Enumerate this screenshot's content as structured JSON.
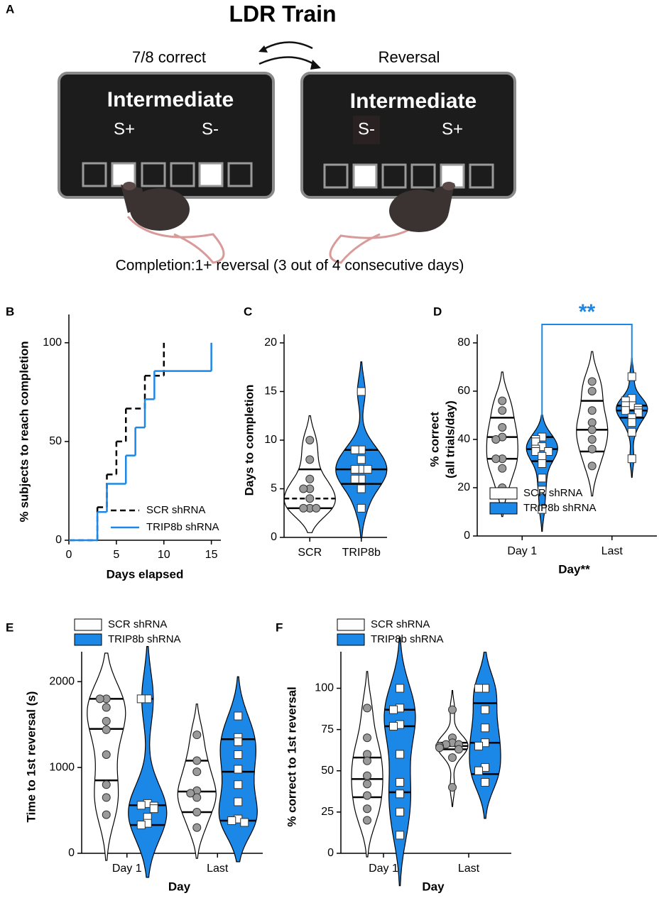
{
  "panel_a": {
    "label": "A",
    "title": "LDR Train",
    "left": {
      "caption": "7/8 correct",
      "screen": "Intermediate",
      "stimuli": [
        "S+",
        "S-"
      ]
    },
    "right": {
      "caption": "Reversal",
      "screen": "Intermediate",
      "stimuli": [
        "S-",
        "S+"
      ]
    },
    "footer": "Completion:1+ reversal (3 out of 4 consecutive days)"
  },
  "chart_data": [
    {
      "panel": "B",
      "type": "step",
      "xlabel": "Days elapsed",
      "ylabel": "% subjects to reach completion",
      "xlim": [
        0,
        16
      ],
      "xticks": [
        0,
        5,
        10,
        15
      ],
      "ylim": [
        0,
        110
      ],
      "yticks": [
        0,
        50,
        100
      ],
      "legend": "lower right",
      "series": [
        {
          "name": "SCR shRNA",
          "color": "#000000",
          "dashed": true,
          "x": [
            0,
            3,
            4,
            5,
            6,
            8,
            10
          ],
          "values": [
            0,
            16.7,
            33.3,
            50,
            66.7,
            83.3,
            100
          ]
        },
        {
          "name": "TRIP8b shRNA",
          "color": "#1b87e6",
          "dashed": false,
          "x": [
            0,
            3,
            4,
            6,
            7,
            8,
            9,
            15
          ],
          "values": [
            0,
            14.3,
            28.6,
            42.9,
            57.1,
            71.4,
            85.7,
            100
          ]
        }
      ]
    },
    {
      "panel": "C",
      "type": "violin",
      "ylabel": "Days to completion",
      "ylim": [
        0,
        20
      ],
      "yticks": [
        0,
        5,
        10,
        15,
        20
      ],
      "categories": [
        "SCR",
        "TRIP8b"
      ],
      "colors": [
        "#ffffff",
        "#1b87e6"
      ],
      "markers": [
        "circle",
        "square"
      ],
      "values": [
        [
          10,
          8,
          6,
          5,
          5,
          4,
          3,
          3,
          3
        ],
        [
          15,
          9,
          9,
          8,
          7,
          7,
          7,
          6,
          6,
          5,
          3
        ]
      ],
      "quartiles": [
        [
          3,
          4,
          7
        ],
        [
          5.5,
          7,
          9
        ]
      ]
    },
    {
      "panel": "D",
      "type": "grouped_violin",
      "xlabel": "Day**",
      "ylabel": [
        "% correct",
        "(all trials/day)"
      ],
      "ylim": [
        0,
        80
      ],
      "yticks": [
        0,
        20,
        40,
        60,
        80
      ],
      "categories": [
        "Day 1",
        "Last"
      ],
      "legend": "top",
      "annotation": "**",
      "series": [
        {
          "name": "SCR shRNA",
          "color": "#ffffff",
          "marker": "circle",
          "values": [
            [
              56,
              52,
              45,
              41,
              40,
              32,
              32,
              28,
              20
            ],
            [
              64,
              60,
              52,
              47,
              44,
              40,
              36,
              29
            ]
          ],
          "quartiles": [
            [
              32,
              41,
              49
            ],
            [
              35,
              44,
              56
            ]
          ]
        },
        {
          "name": "TRIP8b shRNA",
          "color": "#1b87e6",
          "marker": "square",
          "values": [
            [
              41,
              40,
              39,
              37,
              36,
              35,
              35,
              33,
              30,
              24,
              19,
              11
            ],
            [
              66,
              57,
              56,
              54,
              54,
              53,
              52,
              52,
              51,
              49,
              47,
              43,
              32
            ]
          ],
          "quartiles": [
            [
              31,
              36,
              41
            ],
            [
              49,
              52,
              54
            ]
          ]
        }
      ]
    },
    {
      "panel": "E",
      "type": "grouped_violin",
      "xlabel": "Day",
      "ylabel": "Time to 1st reversal (s)",
      "ylim": [
        0,
        2250
      ],
      "yticks": [
        0,
        1000,
        2000
      ],
      "categories": [
        "Day 1",
        "Last"
      ],
      "legend": "top",
      "series": [
        {
          "name": "SCR shRNA",
          "color": "#ffffff",
          "marker": "circle",
          "values": [
            [
              1800,
              1800,
              1700,
              1540,
              1440,
              1150,
              800,
              650,
              450
            ],
            [
              1380,
              1080,
              950,
              730,
              700,
              650,
              480,
              300
            ]
          ],
          "quartiles": [
            [
              850,
              1450,
              1800
            ],
            [
              480,
              720,
              1080
            ]
          ]
        },
        {
          "name": "TRIP8b shRNA",
          "color": "#1b87e6",
          "marker": "square",
          "values": [
            [
              1800,
              1800,
              580,
              560,
              550,
              520,
              420,
              350,
              330
            ],
            [
              1600,
              1350,
              1300,
              1150,
              980,
              800,
              600,
              400,
              380,
              360
            ]
          ],
          "quartiles": [
            [
              330,
              560,
              1800
            ],
            [
              380,
              950,
              1330
            ]
          ]
        }
      ]
    },
    {
      "panel": "F",
      "type": "grouped_violin",
      "xlabel": "Day",
      "ylabel": "% correct to 1st reversal",
      "ylim": [
        0,
        117
      ],
      "yticks": [
        0,
        25,
        50,
        75,
        100
      ],
      "categories": [
        "Day 1",
        "Last"
      ],
      "legend": "top",
      "series": [
        {
          "name": "SCR shRNA",
          "color": "#ffffff",
          "marker": "circle",
          "values": [
            [
              88,
              70,
              60,
              56,
              47,
              42,
              35,
              27,
              20
            ],
            [
              87,
              70,
              67,
              66,
              66,
              65,
              64,
              63,
              58,
              40
            ]
          ],
          "quartiles": [
            [
              34,
              45,
              58
            ],
            [
              63,
              65,
              67
            ]
          ]
        },
        {
          "name": "TRIP8b shRNA",
          "color": "#1b87e6",
          "marker": "square",
          "values": [
            [
              100,
              88,
              87,
              78,
              77,
              60,
              43,
              36,
              25,
              11
            ],
            [
              100,
              100,
              87,
              76,
              67,
              65,
              52,
              50,
              43
            ]
          ],
          "quartiles": [
            [
              37,
              77,
              87
            ],
            [
              48,
              67,
              91
            ]
          ]
        }
      ]
    }
  ]
}
